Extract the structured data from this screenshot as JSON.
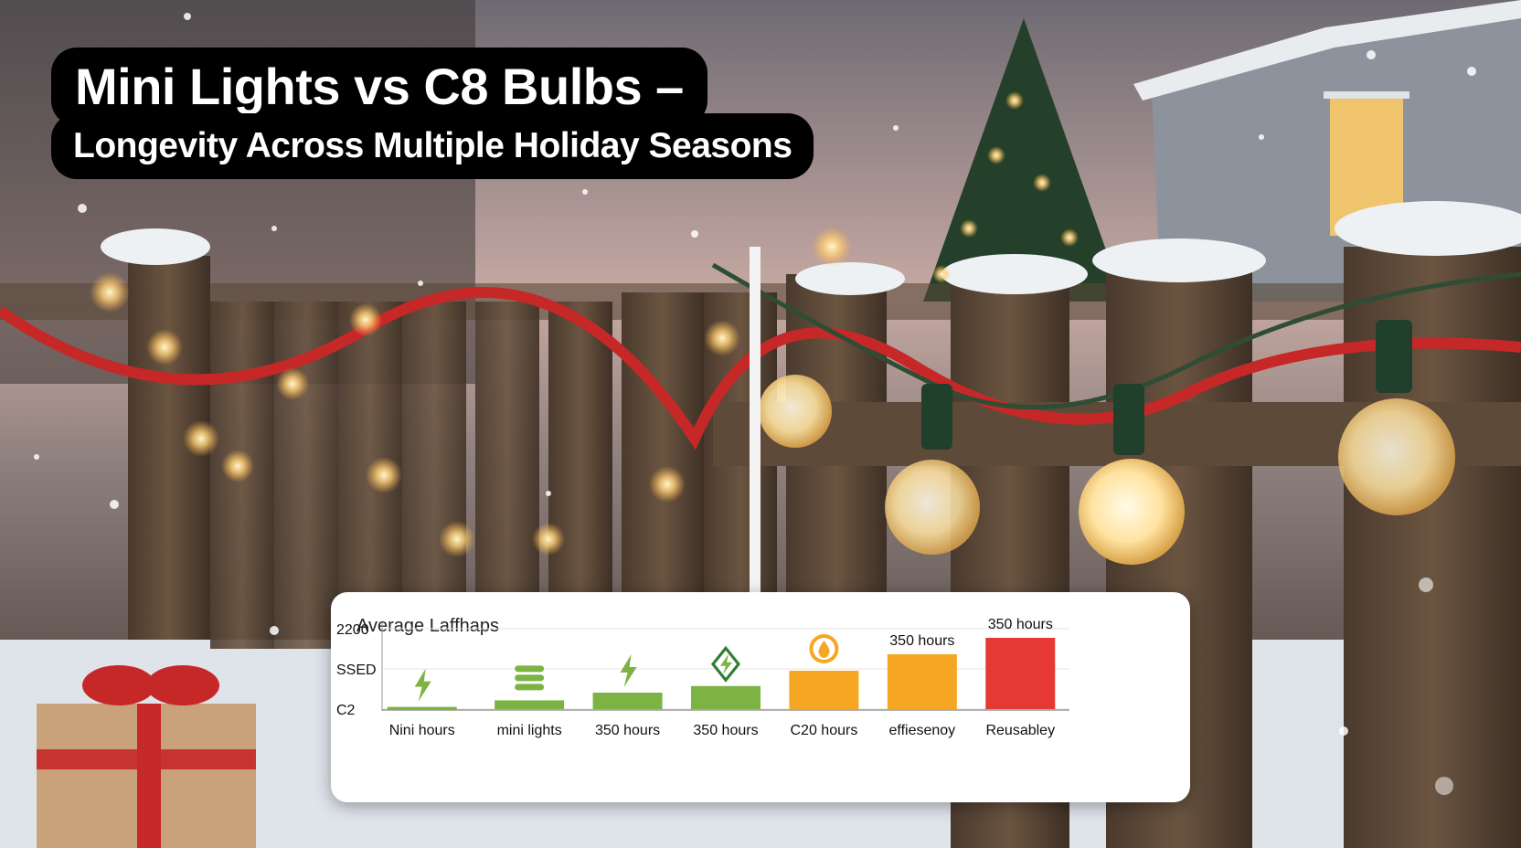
{
  "title": {
    "line1": "Mini Lights vs C8 Bulbs –",
    "line2": "Longevity Across Multiple Holiday Seasons"
  },
  "chart_data": {
    "type": "bar",
    "title": "Average Laffhaps",
    "y_tick_labels": [
      "2200",
      "SSED",
      "C2"
    ],
    "categories": [
      "Nini hours",
      "mini lights",
      "350 hours",
      "350 hours",
      "C20 hours",
      "effiesenoy",
      "Reusabley"
    ],
    "values": [
      4,
      16,
      30,
      42,
      70,
      100,
      130
    ],
    "ylim": [
      0,
      150
    ],
    "colors": [
      "#7cb342",
      "#7cb342",
      "#7cb342",
      "#7cb342",
      "#f5a623",
      "#f5a623",
      "#e53935"
    ],
    "data_labels": [
      "",
      "",
      "",
      "",
      "",
      "350 hours",
      "350 hours"
    ],
    "icons": [
      "lightning-icon",
      "stacked-bars-icon",
      "lightning-icon",
      "leaf-lightning-icon",
      "flame-icon",
      "",
      ""
    ],
    "grid": true,
    "legend": "none"
  },
  "colors": {
    "green": "#7cb342",
    "orange": "#f5a623",
    "red": "#e53935"
  }
}
